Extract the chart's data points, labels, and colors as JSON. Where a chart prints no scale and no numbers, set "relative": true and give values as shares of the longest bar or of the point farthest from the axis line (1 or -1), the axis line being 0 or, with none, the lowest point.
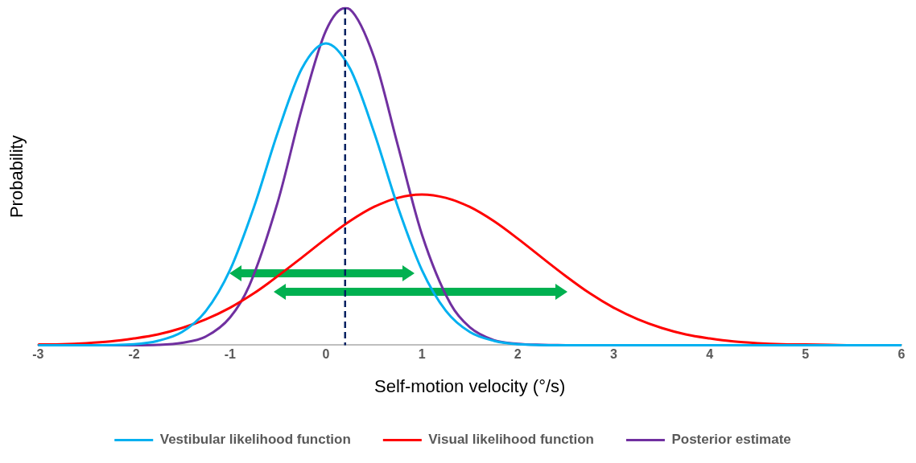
{
  "chart_data": {
    "type": "line",
    "relative": true,
    "xlabel": "Self-motion velocity (°/s)",
    "ylabel": "Probability",
    "xlim": [
      -3,
      6
    ],
    "xticks": [
      -3,
      -2,
      -1,
      0,
      1,
      2,
      3,
      4,
      5,
      6
    ],
    "grid": false,
    "legend": "bottom",
    "marker": "none",
    "line_style": "solid",
    "series": [
      {
        "name": "Vestibular likelihood function",
        "color": "#00b0f0",
        "x": [
          -3,
          -2.5,
          -2,
          -1.75,
          -1.5,
          -1.25,
          -1,
          -0.75,
          -0.5,
          -0.25,
          0,
          0.25,
          0.5,
          0.75,
          1,
          1.25,
          1.5,
          1.75,
          2,
          2.5,
          3,
          6
        ],
        "values": [
          0,
          0,
          0.003,
          0.013,
          0.039,
          0.102,
          0.223,
          0.41,
          0.633,
          0.821,
          0.895,
          0.821,
          0.633,
          0.41,
          0.223,
          0.102,
          0.039,
          0.013,
          0.003,
          0,
          0,
          0
        ]
      },
      {
        "name": "Visual likelihood function",
        "color": "#ff0000",
        "x": [
          -3,
          -2.75,
          -2.5,
          -2.25,
          -2,
          -1.75,
          -1.5,
          -1.25,
          -1,
          -0.75,
          -0.6,
          -0.25,
          0,
          0.25,
          0.5,
          0.75,
          1,
          1.25,
          1.5,
          1.75,
          2,
          2.25,
          2.5,
          2.75,
          3,
          3.25,
          3.5,
          3.75,
          4,
          4.25,
          4.5,
          4.75,
          5,
          5.25,
          5.5,
          6
        ],
        "values": [
          0.002,
          0.003,
          0.006,
          0.011,
          0.02,
          0.032,
          0.051,
          0.077,
          0.111,
          0.154,
          0.184,
          0.26,
          0.316,
          0.368,
          0.41,
          0.437,
          0.447,
          0.437,
          0.41,
          0.368,
          0.316,
          0.26,
          0.205,
          0.154,
          0.111,
          0.077,
          0.051,
          0.032,
          0.02,
          0.011,
          0.006,
          0.003,
          0.002,
          0.001,
          0,
          0
        ]
      },
      {
        "name": "Posterior estimate",
        "color": "#7030a0",
        "x": [
          -3,
          -2,
          -1.75,
          -1.5,
          -1.25,
          -1,
          -0.8,
          -0.5,
          -0.25,
          0,
          0.2,
          0.25,
          0.5,
          0.75,
          1,
          1.3,
          1.5,
          1.75,
          2,
          2.25,
          2.5
        ],
        "values": [
          0,
          0,
          0.001,
          0.007,
          0.026,
          0.082,
          0.176,
          0.427,
          0.703,
          0.933,
          1,
          0.996,
          0.855,
          0.592,
          0.329,
          0.122,
          0.053,
          0.015,
          0.004,
          0.001,
          0
        ]
      }
    ],
    "ref_lines": [
      {
        "axis": "x",
        "value": 0.2,
        "color": "#002060",
        "line_style": "dashed"
      }
    ]
  }
}
